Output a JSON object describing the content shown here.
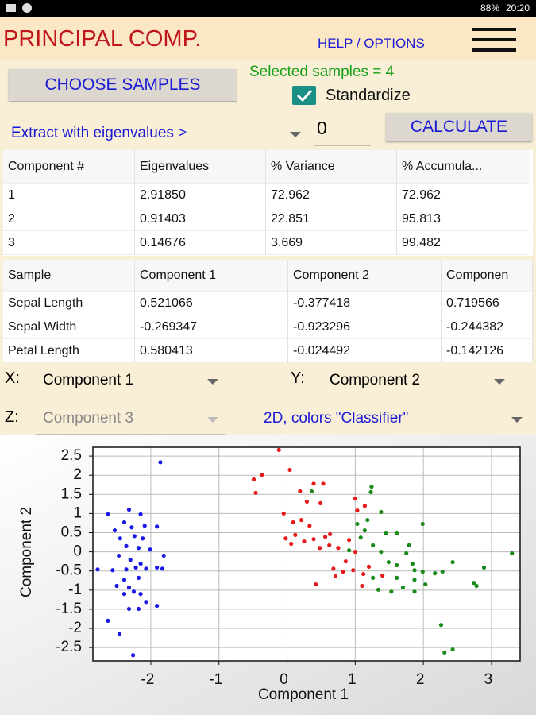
{
  "status": {
    "battery": "88%",
    "time": "20:20"
  },
  "header": {
    "title": "PRINCIPAL COMP.",
    "help": "HELP / OPTIONS"
  },
  "controls": {
    "choose_button": "CHOOSE SAMPLES",
    "selected_samples": "Selected samples = 4",
    "standardize": "Standardize",
    "extract_label": "Extract with eigenvalues >",
    "eigen_input": "0",
    "calculate": "CALCULATE"
  },
  "eigen_table": {
    "columns": [
      "Component #",
      "Eigenvalues",
      "% Variance",
      "% Accumula..."
    ],
    "rows": [
      [
        "1",
        "2.91850",
        "72.962",
        "72.962"
      ],
      [
        "2",
        "0.91403",
        "22.851",
        "95.813"
      ],
      [
        "3",
        "0.14676",
        "3.669",
        "99.482"
      ]
    ]
  },
  "loadings_table": {
    "columns": [
      "Sample",
      "Component 1",
      "Component 2",
      "Componen"
    ],
    "rows": [
      [
        "Sepal Length",
        "0.521066",
        "-0.377418",
        "0.719566"
      ],
      [
        "Sepal Width",
        "-0.269347",
        "-0.923296",
        "-0.244382"
      ],
      [
        "Petal Length",
        "0.580413",
        "-0.024492",
        "-0.142126"
      ]
    ]
  },
  "selectors": {
    "x_label": "X:",
    "x_value": "Component 1",
    "y_label": "Y:",
    "y_value": "Component 2",
    "z_label": "Z:",
    "z_value": "Component 3",
    "mode": "2D, colors \"Classifier\""
  },
  "chart_data": {
    "type": "scatter",
    "xlabel": "Component 1",
    "ylabel": "Component 2",
    "xlim": [
      -2.85,
      3.42
    ],
    "ylim": [
      -2.85,
      2.73
    ],
    "xticks": [
      -2,
      -1,
      0,
      1,
      2,
      3
    ],
    "yticks": [
      -2.5,
      -2,
      -1.5,
      -1,
      -0.5,
      0,
      0.5,
      1,
      1.5,
      2,
      2.5
    ],
    "grid": true,
    "series": [
      {
        "color": "#1a1ae6",
        "x": [
          -1.86,
          -2.32,
          -2.63,
          -2.15,
          -2.39,
          -2.53,
          -2.28,
          -2.09,
          -1.91,
          -2.45,
          -2.24,
          -2.12,
          -2.36,
          -2.18,
          -2.01,
          -1.81,
          -2.47,
          -2.3,
          -2.15,
          -2.78,
          -2.56,
          -2.36,
          -2.22,
          -2.07,
          -1.91,
          -1.83,
          -2.39,
          -2.18,
          -2.5,
          -2.32,
          -2.15,
          -2.39,
          -2.25,
          -2.07,
          -2.32,
          -2.18,
          -1.91,
          -2.63,
          -2.46,
          -2.26
        ],
        "values": [
          2.34,
          1.1,
          0.98,
          0.98,
          0.77,
          0.56,
          0.64,
          0.68,
          0.66,
          0.35,
          0.41,
          0.35,
          0.15,
          0.1,
          0.06,
          -0.1,
          -0.1,
          -0.21,
          -0.31,
          -0.46,
          -0.48,
          -0.46,
          -0.41,
          -0.44,
          -0.41,
          -0.44,
          -0.73,
          -0.68,
          -0.89,
          -0.93,
          -1.1,
          -1.1,
          -1.04,
          -1.31,
          -1.49,
          -1.49,
          -1.41,
          -1.8,
          -2.14,
          -2.7
        ]
      },
      {
        "color": "#e61a1a",
        "x": [
          -0.12,
          -0.37,
          -0.49,
          -0.46,
          0.04,
          0.39,
          0.53,
          0.19,
          0.29,
          0.49,
          -0.05,
          0.21,
          0.09,
          0.33,
          0.12,
          -0.02,
          0.25,
          0.39,
          0.56,
          0.48,
          0.62,
          0.06,
          1.03,
          1.0,
          1.14,
          0.63,
          0.91,
          0.75,
          1.0,
          0.86,
          0.68,
          0.82,
          0.71,
          0.97,
          1.12,
          1.2,
          1.1,
          0.42,
          1.4
        ],
        "values": [
          2.66,
          2.01,
          1.89,
          1.54,
          2.14,
          1.78,
          1.78,
          1.58,
          1.31,
          1.27,
          1.0,
          0.83,
          0.77,
          0.68,
          0.44,
          0.35,
          0.27,
          0.33,
          0.39,
          0.1,
          0.17,
          0.21,
          1.08,
          1.39,
          1.2,
          0.46,
          0.31,
          0.1,
          0.0,
          -0.25,
          -0.44,
          -0.52,
          -0.64,
          -0.48,
          -0.58,
          -0.39,
          -0.89,
          -0.85,
          -0.62
        ]
      },
      {
        "color": "#1a8a1a",
        "x": [
          0.36,
          1.24,
          1.23,
          1.18,
          1.03,
          1.14,
          1.38,
          1.99,
          1.08,
          1.45,
          1.61,
          1.26,
          0.91,
          1.38,
          1.79,
          1.75,
          3.3,
          2.43,
          1.49,
          1.61,
          1.84,
          1.87,
          1.99,
          2.17,
          2.28,
          2.89,
          1.26,
          1.61,
          1.87,
          2.03,
          1.7,
          1.87,
          1.34,
          1.53,
          2.74,
          2.78,
          2.26,
          2.31,
          2.43
        ],
        "values": [
          1.58,
          1.7,
          1.56,
          0.83,
          0.73,
          0.56,
          1.04,
          0.73,
          0.37,
          0.48,
          0.48,
          0.17,
          0.04,
          0.0,
          0.17,
          -0.04,
          -0.04,
          -0.27,
          -0.27,
          -0.35,
          -0.31,
          -0.48,
          -0.52,
          -0.56,
          -0.52,
          -0.41,
          -0.68,
          -0.68,
          -0.73,
          -0.85,
          -0.93,
          -1.04,
          -0.99,
          -1.04,
          -0.81,
          -0.89,
          -1.91,
          -2.63,
          -2.55
        ]
      }
    ]
  }
}
